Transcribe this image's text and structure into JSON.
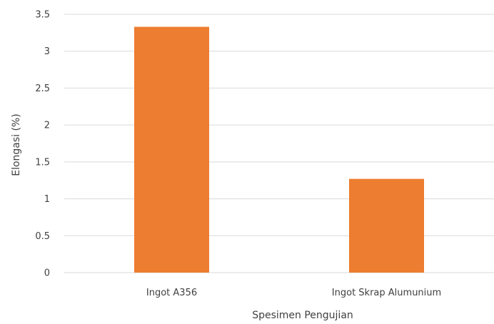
{
  "chart_data": {
    "type": "bar",
    "title": "",
    "xlabel": "Spesimen Pengujian",
    "ylabel": "Elongasi (%)",
    "categories": [
      "Ingot A356",
      "Ingot Skrap Alumunium"
    ],
    "values": [
      3.33,
      1.27
    ],
    "ylim": [
      0,
      3.5
    ],
    "yticks": [
      "0",
      "0.5",
      "1",
      "1.5",
      "2",
      "2.5",
      "3",
      "3.5"
    ],
    "grid": true,
    "legend": "none",
    "bar_color": "#ED7D31"
  }
}
